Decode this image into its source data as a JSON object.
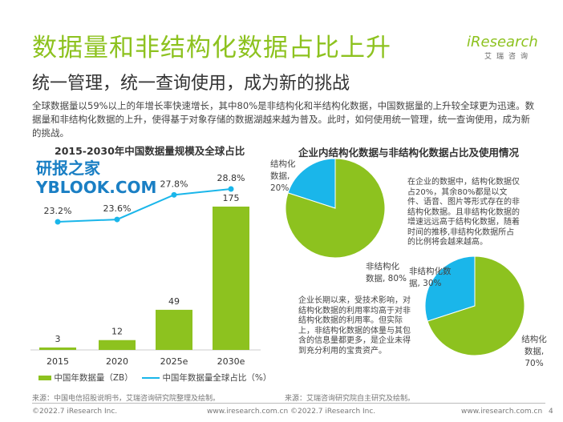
{
  "header": {
    "title": "数据量和非结构化数据占比上升",
    "subtitle": "统一管理，统一查询使用，成为新的挑战",
    "logo": "iResearch",
    "logo_cn": "艾瑞咨询"
  },
  "intro": "全球数据量以59%以上的年增长率快速增长，其中80%是非结构化和半结构化数据，中国数据量的上升较全球更为迅速。数据量和非结构化数据的上升，使得基于对象存储的数据湖越来越为普及。此时，如何使用统一管理，统一查询使用，成为新的挑战。",
  "colors": {
    "green": "#8dc21f",
    "blue": "#1ab6ea"
  },
  "chart_data": [
    {
      "type": "bar+line",
      "title": "2015-2030年中国数据量规模及全球占比",
      "categories": [
        "2015",
        "2020",
        "2025e",
        "2030e"
      ],
      "series": [
        {
          "name": "中国年数据量（ZB）",
          "type": "bar",
          "values": [
            3,
            12,
            49,
            175
          ],
          "labels": [
            "3",
            "12",
            "49",
            "175"
          ]
        },
        {
          "name": "中国年数据量全球占比（%）",
          "type": "line",
          "values": [
            23.2,
            23.6,
            27.8,
            28.8
          ],
          "labels": [
            "23.2%",
            "23.6%",
            "27.8%",
            "28.8%"
          ]
        }
      ],
      "legend": "bottom"
    },
    {
      "type": "pie",
      "title": "企业内结构化数据与非结构化数据占比及使用情况",
      "charts": [
        {
          "slices": [
            {
              "name": "结构化数据",
              "value": 20,
              "label_line1": "结构化",
              "label_line2": "数据,",
              "label_line3": "20%"
            },
            {
              "name": "非结构化数据",
              "value": 80,
              "label_line1": "非结构化",
              "label_line2": "数据, 80%"
            }
          ],
          "note": "在企业的数据中，结构化数据仅占20%，其余80%都是以文件、语音、图片等形式存在的非结构化数据。且非结构化数据的增速远远高于结构化数据，随着时间的推移,非结构化数据所占的比例将会越来越高。"
        },
        {
          "slices": [
            {
              "name": "非结构化数据",
              "value": 30,
              "label_line1": "非结构化数",
              "label_line2": "据, 30%"
            },
            {
              "name": "结构化数据",
              "value": 70,
              "label_line1": "结构化",
              "label_line2": "数据,",
              "label_line3": "70%"
            }
          ],
          "note": "企业长期以来，受技术影响，对结构化数据的利用率均高于对非结构化数据的利用率。但实际上，非结构化数据的体量与其包含的信息量都更多，是企业未得到充分利用的宝贵资产。"
        }
      ]
    }
  ],
  "sources": {
    "left": "来源：中国电信招股说明书，艾瑞咨询研究院整理及绘制。",
    "right": "来源：艾瑞咨询研究院自主研究及绘制。"
  },
  "footer": {
    "copyright": "©2022.7 iResearch Inc.",
    "center": "www.iresearch.com.cn    ©2022.7 iResearch Inc.",
    "url": "www.iresearch.com.cn",
    "page": "4"
  },
  "watermark": "研报之家 YBLOOK.COM"
}
